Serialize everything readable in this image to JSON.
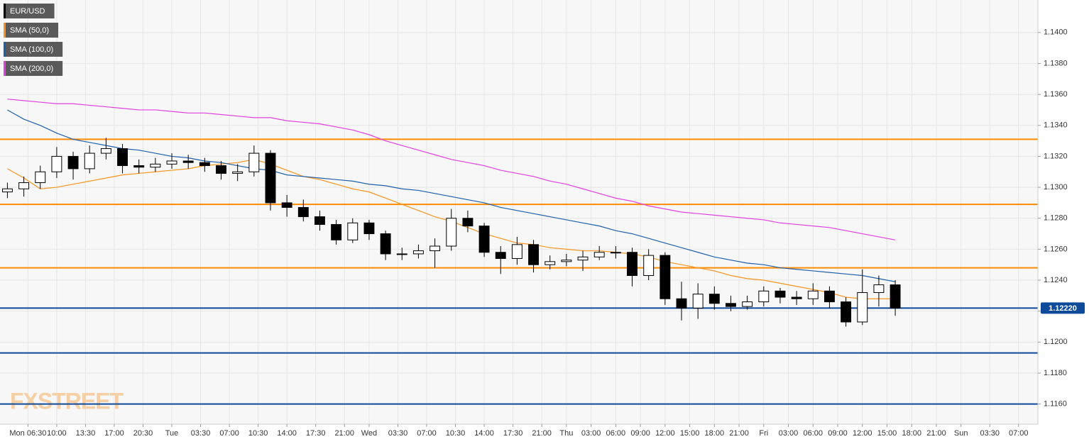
{
  "chart_data": {
    "type": "candlestick",
    "watermark": "FXSTREET",
    "xlim": [
      3.1,
      129.35
    ],
    "ylim": [
      1.1147,
      1.1421
    ],
    "grid": true,
    "legend": "top-left",
    "xticks": [
      {
        "value": 6.5,
        "label": "Mon 06:30"
      },
      {
        "value": 10,
        "label": "10:00"
      },
      {
        "value": 13.5,
        "label": "13:30"
      },
      {
        "value": 17,
        "label": "17:00"
      },
      {
        "value": 20.5,
        "label": "20:30"
      },
      {
        "value": 24,
        "label": "Tue"
      },
      {
        "value": 27.5,
        "label": "03:30"
      },
      {
        "value": 31,
        "label": "07:00"
      },
      {
        "value": 34.5,
        "label": "10:30"
      },
      {
        "value": 38,
        "label": "14:00"
      },
      {
        "value": 41.5,
        "label": "17:30"
      },
      {
        "value": 45,
        "label": "21:00"
      },
      {
        "value": 48,
        "label": "Wed"
      },
      {
        "value": 51.5,
        "label": "03:30"
      },
      {
        "value": 55,
        "label": "07:00"
      },
      {
        "value": 58.5,
        "label": "10:30"
      },
      {
        "value": 62,
        "label": "14:00"
      },
      {
        "value": 65.5,
        "label": "17:30"
      },
      {
        "value": 69,
        "label": "21:00"
      },
      {
        "value": 72,
        "label": "Thu"
      },
      {
        "value": 75,
        "label": "03:00"
      },
      {
        "value": 78,
        "label": "06:00"
      },
      {
        "value": 81,
        "label": "09:00"
      },
      {
        "value": 84,
        "label": "12:00"
      },
      {
        "value": 87,
        "label": "15:00"
      },
      {
        "value": 90,
        "label": "18:00"
      },
      {
        "value": 93,
        "label": "21:00"
      },
      {
        "value": 96,
        "label": "Fri"
      },
      {
        "value": 99,
        "label": "03:00"
      },
      {
        "value": 102,
        "label": "06:00"
      },
      {
        "value": 105,
        "label": "09:00"
      },
      {
        "value": 108,
        "label": "12:00"
      },
      {
        "value": 111,
        "label": "15:00"
      },
      {
        "value": 114,
        "label": "18:00"
      },
      {
        "value": 117,
        "label": "21:00"
      },
      {
        "value": 120,
        "label": "Sun"
      },
      {
        "value": 123.5,
        "label": "03:30"
      },
      {
        "value": 127,
        "label": "07:00"
      }
    ],
    "yticks": [
      {
        "value": 1.116,
        "label": "1.1160"
      },
      {
        "value": 1.118,
        "label": "1.1180"
      },
      {
        "value": 1.12,
        "label": "1.1200"
      },
      {
        "value": 1.122,
        "label": "1.1220"
      },
      {
        "value": 1.124,
        "label": "1.1240"
      },
      {
        "value": 1.126,
        "label": "1.1260"
      },
      {
        "value": 1.128,
        "label": "1.1280"
      },
      {
        "value": 1.13,
        "label": "1.1300"
      },
      {
        "value": 1.132,
        "label": "1.1320"
      },
      {
        "value": 1.134,
        "label": "1.1340"
      },
      {
        "value": 1.136,
        "label": "1.1360"
      },
      {
        "value": 1.138,
        "label": "1.1380"
      },
      {
        "value": 1.14,
        "label": "1.1400"
      }
    ],
    "levels": [
      {
        "value": 1.1331,
        "color": "#ff8c00"
      },
      {
        "value": 1.1289,
        "color": "#ff8c00"
      },
      {
        "value": 1.1248,
        "color": "#ff8c00"
      },
      {
        "value": 1.1222,
        "color": "#0d4a9a"
      },
      {
        "value": 1.1193,
        "color": "#0d4a9a"
      },
      {
        "value": 1.116,
        "color": "#0d4a9a"
      }
    ],
    "last_price": {
      "value": 1.1222,
      "label": "1.12220",
      "color": "#0d4a9a"
    },
    "x": [
      4,
      6,
      8,
      10,
      12,
      14,
      16,
      18,
      20,
      22,
      24,
      26,
      28,
      30,
      32,
      34,
      36,
      38,
      40,
      42,
      44,
      46,
      48,
      50,
      52,
      54,
      56,
      58,
      60,
      62,
      64,
      66,
      68,
      70,
      72,
      74,
      76,
      78,
      80,
      82,
      84,
      86,
      88,
      90,
      92,
      94,
      96,
      98,
      100,
      102,
      104,
      106,
      108,
      110,
      112
    ],
    "series": [
      {
        "name": "EUR/USD",
        "type": "candlestick",
        "color": "#000000",
        "open": [
          1.1297,
          1.1299,
          1.1303,
          1.131,
          1.132,
          1.1312,
          1.1322,
          1.1325,
          1.1314,
          1.1313,
          1.1315,
          1.1317,
          1.1316,
          1.1314,
          1.1309,
          1.131,
          1.1322,
          1.129,
          1.1287,
          1.1281,
          1.1276,
          1.1266,
          1.1277,
          1.127,
          1.1257,
          1.1257,
          1.1259,
          1.1262,
          1.128,
          1.1275,
          1.1258,
          1.1254,
          1.1263,
          1.125,
          1.1252,
          1.1253,
          1.1255,
          1.1258,
          1.1258,
          1.1243,
          1.1256,
          1.1228,
          1.1222,
          1.1231,
          1.1225,
          1.1223,
          1.1226,
          1.1233,
          1.1229,
          1.1228,
          1.1233,
          1.1226,
          1.1213,
          1.1232,
          1.1237
        ],
        "high": [
          1.1303,
          1.1307,
          1.1314,
          1.1326,
          1.1323,
          1.1327,
          1.1332,
          1.1328,
          1.1318,
          1.1319,
          1.1322,
          1.1321,
          1.1319,
          1.1317,
          1.1315,
          1.1327,
          1.1324,
          1.1295,
          1.1292,
          1.1285,
          1.1279,
          1.128,
          1.1279,
          1.1272,
          1.1261,
          1.1263,
          1.1267,
          1.1286,
          1.1285,
          1.1277,
          1.1262,
          1.1268,
          1.1266,
          1.1256,
          1.1257,
          1.1259,
          1.1262,
          1.1262,
          1.1261,
          1.126,
          1.1258,
          1.1239,
          1.1238,
          1.1236,
          1.123,
          1.123,
          1.1236,
          1.1235,
          1.1233,
          1.1238,
          1.1236,
          1.1229,
          1.1247,
          1.1243,
          1.124
        ],
        "low": [
          1.1293,
          1.1294,
          1.1299,
          1.1306,
          1.1305,
          1.1309,
          1.1318,
          1.1309,
          1.1309,
          1.131,
          1.1312,
          1.1312,
          1.131,
          1.1305,
          1.1304,
          1.1307,
          1.1285,
          1.1281,
          1.1278,
          1.1272,
          1.1263,
          1.1264,
          1.1266,
          1.1253,
          1.1253,
          1.1254,
          1.1248,
          1.1259,
          1.1271,
          1.1255,
          1.1244,
          1.125,
          1.1245,
          1.1247,
          1.1249,
          1.1246,
          1.1253,
          1.1254,
          1.1236,
          1.124,
          1.1224,
          1.1214,
          1.1215,
          1.1221,
          1.122,
          1.1221,
          1.1223,
          1.1225,
          1.1224,
          1.1224,
          1.1222,
          1.121,
          1.1211,
          1.1223,
          1.1217
        ],
        "close": [
          1.1299,
          1.1303,
          1.131,
          1.132,
          1.1312,
          1.1322,
          1.1325,
          1.1314,
          1.1313,
          1.1315,
          1.1317,
          1.1316,
          1.1314,
          1.1309,
          1.131,
          1.1322,
          1.129,
          1.1287,
          1.1281,
          1.1276,
          1.1266,
          1.1277,
          1.127,
          1.1257,
          1.1257,
          1.1259,
          1.1262,
          1.128,
          1.1275,
          1.1258,
          1.1254,
          1.1263,
          1.125,
          1.1252,
          1.1253,
          1.1255,
          1.1258,
          1.1258,
          1.1243,
          1.1256,
          1.1228,
          1.1222,
          1.1231,
          1.1225,
          1.1223,
          1.1226,
          1.1233,
          1.1229,
          1.1228,
          1.1233,
          1.1226,
          1.1213,
          1.1232,
          1.1237,
          1.1222
        ]
      },
      {
        "name": "SMA (50,0)",
        "type": "line",
        "color": "#f7941d",
        "values": [
          1.1312,
          1.1306,
          1.1299,
          1.13,
          1.1302,
          1.1304,
          1.1306,
          1.1308,
          1.1309,
          1.131,
          1.1311,
          1.1312,
          1.1314,
          1.1315,
          1.1316,
          1.1318,
          1.1315,
          1.1311,
          1.1307,
          1.1305,
          1.1302,
          1.1299,
          1.1297,
          1.1293,
          1.1289,
          1.1285,
          1.1281,
          1.1278,
          1.1274,
          1.127,
          1.1267,
          1.1264,
          1.1263,
          1.1261,
          1.126,
          1.1259,
          1.1259,
          1.1258,
          1.1257,
          1.1255,
          1.1252,
          1.125,
          1.1248,
          1.1246,
          1.1243,
          1.1241,
          1.124,
          1.1238,
          1.1236,
          1.1234,
          1.1232,
          1.1229,
          1.1228,
          1.1228,
          1.1228
        ]
      },
      {
        "name": "SMA (100,0)",
        "type": "line",
        "color": "#1f5fa8",
        "values": [
          1.135,
          1.1344,
          1.134,
          1.1335,
          1.1331,
          1.1329,
          1.1327,
          1.1325,
          1.1324,
          1.1322,
          1.132,
          1.1319,
          1.1317,
          1.1316,
          1.1314,
          1.1312,
          1.1311,
          1.1308,
          1.1307,
          1.1306,
          1.1305,
          1.1304,
          1.1302,
          1.1301,
          1.1299,
          1.1298,
          1.1296,
          1.1294,
          1.1292,
          1.129,
          1.1287,
          1.1285,
          1.1283,
          1.1281,
          1.1279,
          1.1277,
          1.1275,
          1.1272,
          1.127,
          1.1267,
          1.1264,
          1.1261,
          1.1258,
          1.1255,
          1.1253,
          1.1251,
          1.125,
          1.1248,
          1.1247,
          1.1246,
          1.1245,
          1.1244,
          1.1243,
          1.1241,
          1.1239
        ]
      },
      {
        "name": "SMA (200,0)",
        "type": "line",
        "color": "#e040e0",
        "values": [
          1.1357,
          1.1356,
          1.1355,
          1.1354,
          1.1354,
          1.1353,
          1.1352,
          1.1351,
          1.135,
          1.135,
          1.1349,
          1.1348,
          1.1348,
          1.1347,
          1.1346,
          1.1345,
          1.1345,
          1.1343,
          1.1342,
          1.1341,
          1.1339,
          1.1337,
          1.1334,
          1.133,
          1.1327,
          1.1324,
          1.1321,
          1.1318,
          1.1316,
          1.1314,
          1.1311,
          1.1309,
          1.1307,
          1.1304,
          1.1302,
          1.1299,
          1.1296,
          1.1293,
          1.1291,
          1.1288,
          1.1286,
          1.1284,
          1.1283,
          1.1282,
          1.1281,
          1.128,
          1.1279,
          1.1277,
          1.1276,
          1.1275,
          1.1274,
          1.1272,
          1.127,
          1.1268,
          1.1266
        ]
      }
    ]
  }
}
